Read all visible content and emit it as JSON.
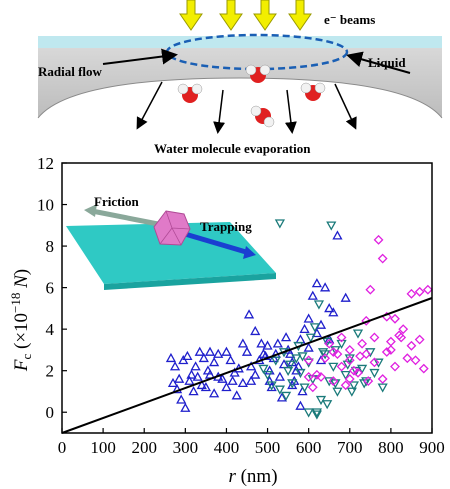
{
  "schematic": {
    "beams_label": "e⁻ beams",
    "radial_flow_label": "Radial flow",
    "liquid_label": "Liquid",
    "evaporation_label": "Water molecule evaporation"
  },
  "inset": {
    "friction_label": "Friction",
    "trapping_label": "Trapping"
  },
  "chart_data": {
    "type": "scatter",
    "xlabel": "r (nm)",
    "ylabel": "F_c (×10^-18 N)",
    "xlim": [
      0,
      900
    ],
    "ylim": [
      -1,
      12
    ],
    "xticks": [
      0,
      100,
      200,
      300,
      400,
      500,
      600,
      700,
      800,
      900
    ],
    "yticks": [
      0,
      2,
      4,
      6,
      8,
      10,
      12
    ],
    "colors": {
      "blue": "#1f1fcc",
      "teal": "#1a7a7a",
      "magenta": "#e020e0",
      "fit": "#000000"
    },
    "fit_line": {
      "x": [
        0,
        900
      ],
      "y": [
        -1.2,
        5.5
      ]
    },
    "series": [
      {
        "marker": "triangle-up",
        "color": "#1f1fcc",
        "points": [
          [
            265,
            2.6
          ],
          [
            275,
            2.2
          ],
          [
            285,
            1.6
          ],
          [
            295,
            2.5
          ],
          [
            305,
            2.7
          ],
          [
            315,
            1.8
          ],
          [
            325,
            2.2
          ],
          [
            335,
            2.9
          ],
          [
            345,
            2.6
          ],
          [
            355,
            2.0
          ],
          [
            270,
            1.4
          ],
          [
            280,
            1.1
          ],
          [
            290,
            0.6
          ],
          [
            300,
            0.2
          ],
          [
            310,
            1.5
          ],
          [
            320,
            1.0
          ],
          [
            330,
            1.7
          ],
          [
            340,
            1.3
          ],
          [
            350,
            1.2
          ],
          [
            360,
            1.8
          ],
          [
            370,
            2.4
          ],
          [
            380,
            2.8
          ],
          [
            390,
            1.6
          ],
          [
            400,
            1.2
          ],
          [
            410,
            2.5
          ],
          [
            420,
            1.9
          ],
          [
            430,
            2.1
          ],
          [
            440,
            1.4
          ],
          [
            450,
            2.9
          ],
          [
            460,
            2.2
          ],
          [
            470,
            1.8
          ],
          [
            480,
            2.5
          ],
          [
            490,
            2.8
          ],
          [
            500,
            3.2
          ],
          [
            505,
            2.0
          ],
          [
            515,
            2.6
          ],
          [
            525,
            3.3
          ],
          [
            530,
            1.7
          ],
          [
            540,
            2.3
          ],
          [
            550,
            3.0
          ],
          [
            560,
            2.4
          ],
          [
            570,
            2.0
          ],
          [
            580,
            3.5
          ],
          [
            590,
            4.0
          ],
          [
            600,
            4.5
          ],
          [
            610,
            5.6
          ],
          [
            620,
            3.8
          ],
          [
            630,
            4.2
          ],
          [
            640,
            6.0
          ],
          [
            650,
            5.0
          ],
          [
            660,
            4.8
          ],
          [
            670,
            8.5
          ],
          [
            620,
            6.2
          ],
          [
            600,
            3.1
          ],
          [
            455,
            4.7
          ],
          [
            470,
            3.9
          ],
          [
            485,
            3.3
          ],
          [
            495,
            2.7
          ],
          [
            510,
            1.2
          ],
          [
            535,
            0.7
          ],
          [
            545,
            3.6
          ],
          [
            555,
            2.8
          ],
          [
            565,
            1.5
          ],
          [
            575,
            2.2
          ],
          [
            585,
            1.0
          ],
          [
            370,
            0.9
          ],
          [
            380,
            1.7
          ],
          [
            400,
            2.9
          ],
          [
            415,
            1.5
          ],
          [
            425,
            0.8
          ],
          [
            360,
            2.9
          ],
          [
            440,
            3.3
          ],
          [
            460,
            1.5
          ],
          [
            505,
            1.5
          ],
          [
            520,
            2.8
          ],
          [
            560,
            1.3
          ],
          [
            580,
            0.3
          ],
          [
            630,
            2.5
          ],
          [
            650,
            3.5
          ],
          [
            690,
            5.5
          ]
        ]
      },
      {
        "marker": "triangle-down",
        "color": "#1a7a7a",
        "points": [
          [
            490,
            2.1
          ],
          [
            500,
            1.8
          ],
          [
            510,
            1.3
          ],
          [
            520,
            2.5
          ],
          [
            530,
            1.1
          ],
          [
            540,
            2.9
          ],
          [
            550,
            2.0
          ],
          [
            560,
            1.4
          ],
          [
            570,
            2.6
          ],
          [
            580,
            1.9
          ],
          [
            590,
            1.2
          ],
          [
            600,
            2.4
          ],
          [
            610,
            1.6
          ],
          [
            620,
            0.0
          ],
          [
            630,
            0.6
          ],
          [
            640,
            2.8
          ],
          [
            650,
            1.5
          ],
          [
            660,
            2.2
          ],
          [
            670,
            1.0
          ],
          [
            680,
            3.3
          ],
          [
            690,
            1.8
          ],
          [
            700,
            2.6
          ],
          [
            710,
            1.3
          ],
          [
            720,
            3.8
          ],
          [
            730,
            2.1
          ],
          [
            740,
            1.5
          ],
          [
            750,
            2.9
          ],
          [
            760,
            1.9
          ],
          [
            770,
            2.4
          ],
          [
            780,
            1.2
          ],
          [
            545,
            0.8
          ],
          [
            575,
            3.2
          ],
          [
            605,
            3.6
          ],
          [
            615,
            4.1
          ],
          [
            625,
            5.2
          ],
          [
            635,
            2.9
          ],
          [
            645,
            3.4
          ],
          [
            655,
            9.0
          ],
          [
            530,
            9.1
          ],
          [
            600,
            0.0
          ],
          [
            620,
            -0.1
          ],
          [
            645,
            0.4
          ],
          [
            665,
            3.0
          ],
          [
            695,
            2.3
          ],
          [
            715,
            2.0
          ],
          [
            735,
            1.4
          ],
          [
            555,
            2.3
          ],
          [
            585,
            2.7
          ],
          [
            665,
            1.4
          ],
          [
            705,
            1.0
          ]
        ]
      },
      {
        "marker": "diamond",
        "color": "#e020e0",
        "points": [
          [
            600,
            2.5
          ],
          [
            620,
            1.8
          ],
          [
            640,
            2.6
          ],
          [
            660,
            1.5
          ],
          [
            680,
            2.2
          ],
          [
            700,
            3.0
          ],
          [
            720,
            1.9
          ],
          [
            740,
            2.8
          ],
          [
            760,
            2.4
          ],
          [
            780,
            1.6
          ],
          [
            800,
            3.4
          ],
          [
            820,
            3.7
          ],
          [
            840,
            2.6
          ],
          [
            860,
            2.5
          ],
          [
            880,
            2.1
          ],
          [
            890,
            5.9
          ],
          [
            870,
            5.8
          ],
          [
            850,
            5.7
          ],
          [
            830,
            4.0
          ],
          [
            810,
            4.5
          ],
          [
            790,
            4.6
          ],
          [
            770,
            8.3
          ],
          [
            780,
            7.4
          ],
          [
            750,
            5.9
          ],
          [
            730,
            3.3
          ],
          [
            710,
            2.0
          ],
          [
            690,
            1.3
          ],
          [
            670,
            2.8
          ],
          [
            650,
            3.3
          ],
          [
            630,
            1.7
          ],
          [
            610,
            1.2
          ],
          [
            600,
            1.7
          ],
          [
            660,
            2.9
          ],
          [
            700,
            1.6
          ],
          [
            725,
            2.7
          ],
          [
            760,
            3.6
          ],
          [
            800,
            3.0
          ],
          [
            825,
            3.6
          ],
          [
            850,
            3.2
          ],
          [
            870,
            3.5
          ],
          [
            700,
            2.5
          ],
          [
            745,
            1.5
          ],
          [
            810,
            2.2
          ],
          [
            680,
            3.6
          ],
          [
            740,
            4.4
          ],
          [
            790,
            2.9
          ]
        ]
      }
    ]
  }
}
